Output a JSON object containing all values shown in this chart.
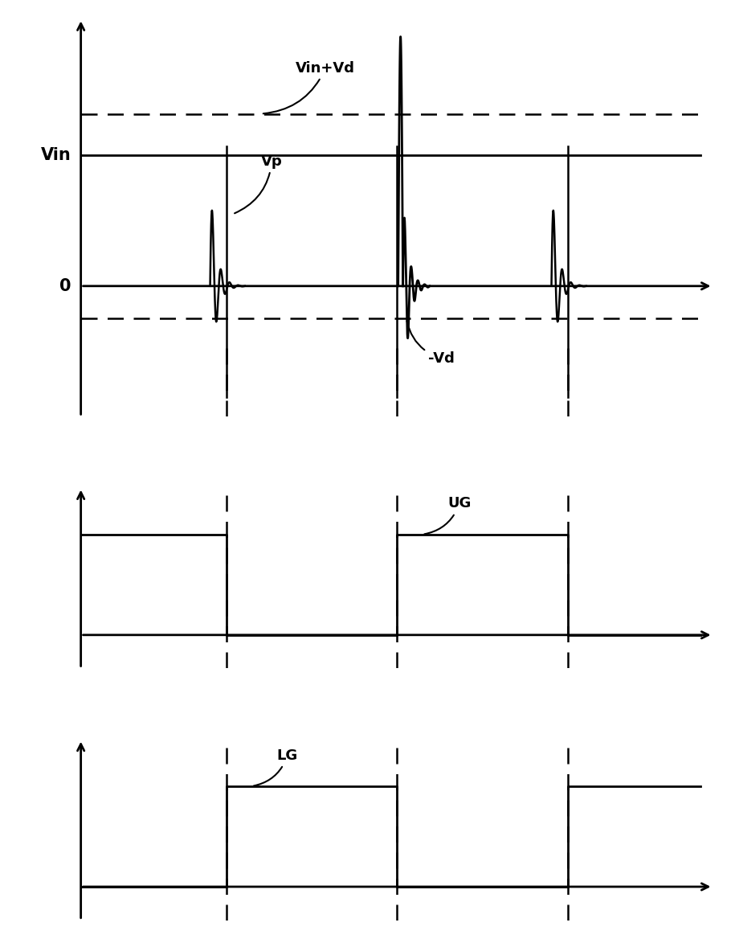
{
  "fig_width": 9.15,
  "fig_height": 11.68,
  "dpi": 100,
  "background_color": "#ffffff",
  "line_color": "#000000",
  "panel1_ylim": [
    -2.2,
    4.5
  ],
  "panel1_xlim": [
    0,
    10
  ],
  "vin_level": 2.2,
  "vind_level": 2.9,
  "vd_level": -0.55,
  "zero_level": 0.0,
  "panel2_ylim": [
    -0.5,
    2.2
  ],
  "panel2_xlim": [
    0,
    10
  ],
  "ug_high": 1.5,
  "ug_low": 0.0,
  "panel3_ylim": [
    -0.5,
    2.2
  ],
  "panel3_xlim": [
    0,
    10
  ],
  "lg_high": 1.5,
  "lg_low": 0.0,
  "t1": 2.3,
  "t2": 5.0,
  "t3": 7.7,
  "label_vin": "Vin",
  "label_vinvd": "Vin+Vd",
  "label_vp": "Vp",
  "label_vd_neg": "-Vd",
  "label_ug": "UG",
  "label_lg": "LG",
  "label_zero": "0",
  "font_size_label": 15,
  "font_size_axis": 13
}
